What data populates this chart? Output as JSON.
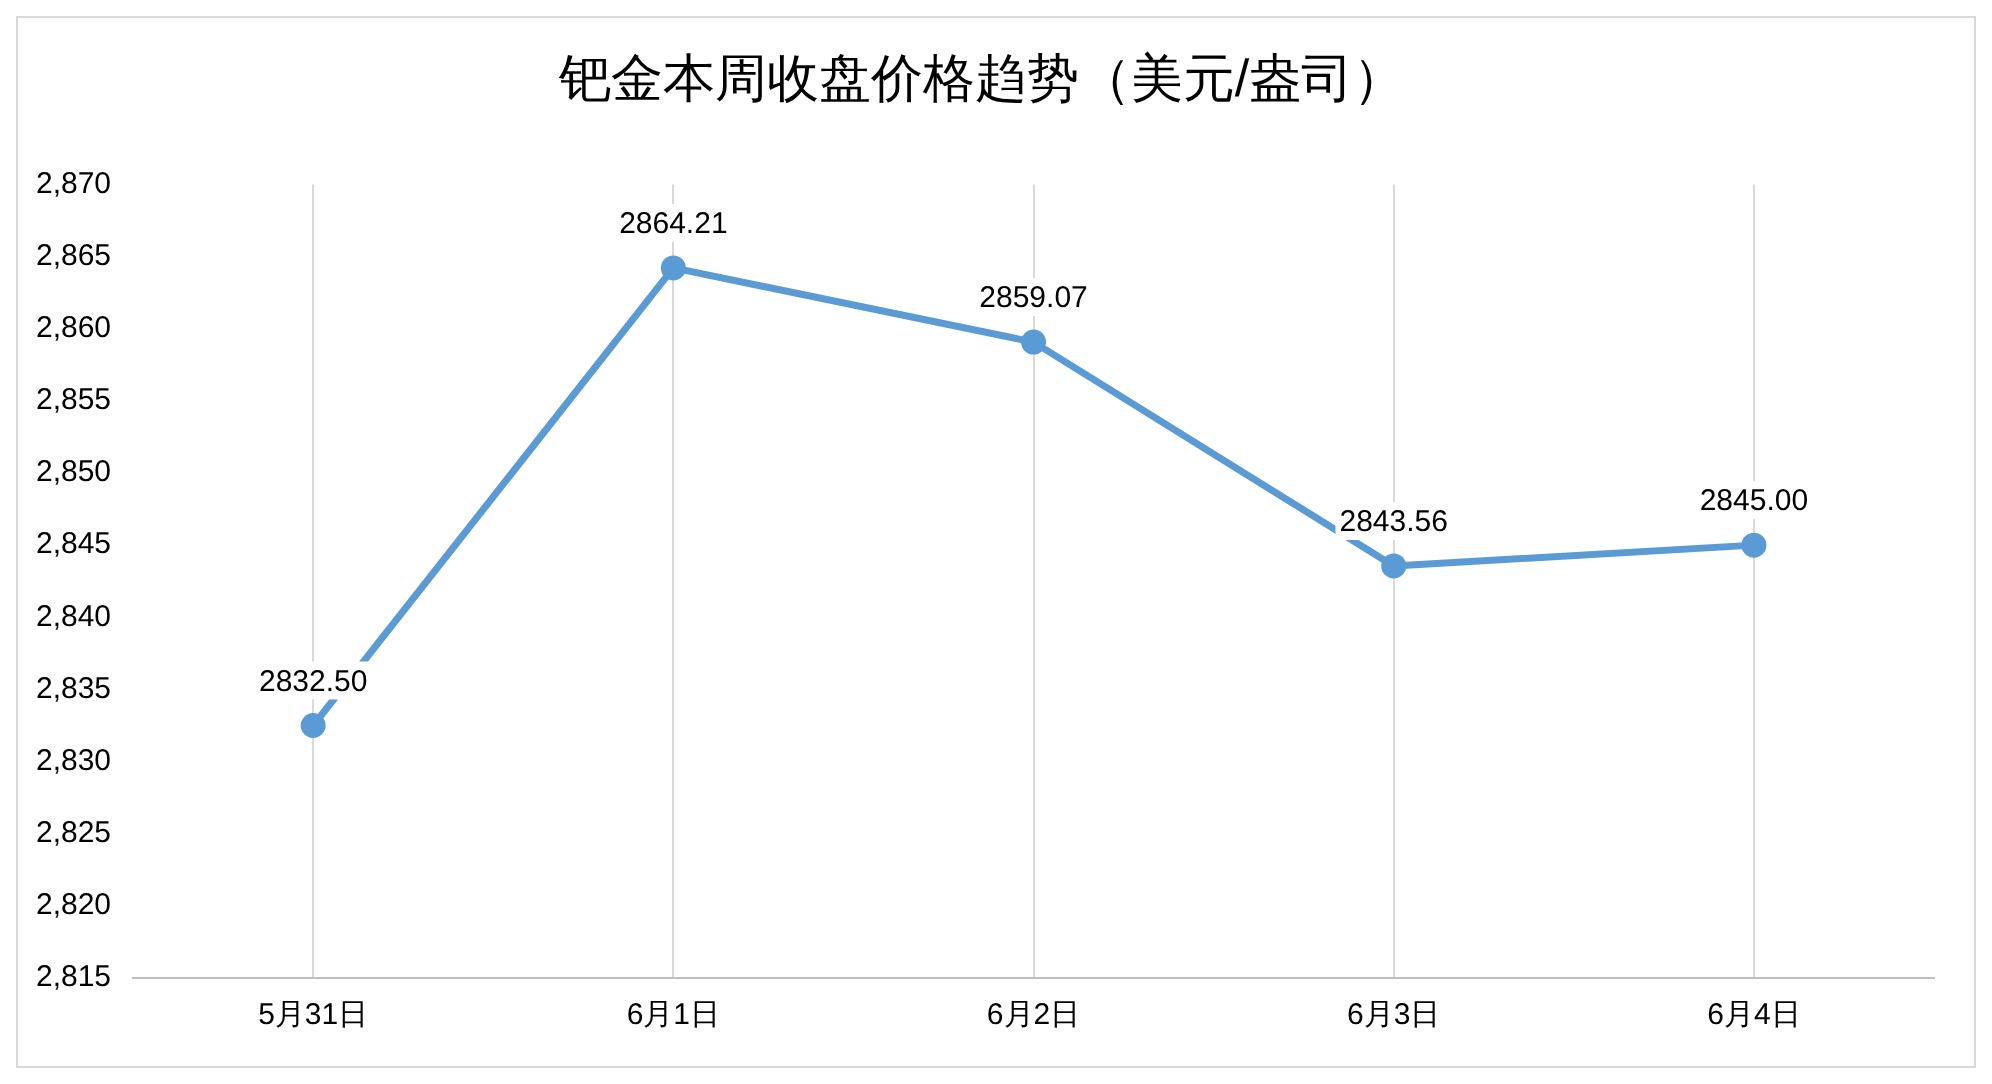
{
  "chart_data": {
    "type": "line",
    "title": "钯金本周收盘价格趋势（美元/盎司）",
    "categories": [
      "5月31日",
      "6月1日",
      "6月2日",
      "6月3日",
      "6月4日"
    ],
    "series": [
      {
        "color": "#5b9bd5",
        "values": [
          2832.5,
          2864.21,
          2859.07,
          2843.56,
          2845.0
        ]
      }
    ],
    "value_labels": [
      "2832.50",
      "2864.21",
      "2859.07",
      "2843.56",
      "2845.00"
    ],
    "ylim": [
      2815,
      2870
    ],
    "yticks": [
      {
        "value": 2815,
        "label": "2,815"
      },
      {
        "value": 2820,
        "label": "2,820"
      },
      {
        "value": 2825,
        "label": "2,825"
      },
      {
        "value": 2830,
        "label": "2,830"
      },
      {
        "value": 2835,
        "label": "2,835"
      },
      {
        "value": 2840,
        "label": "2,840"
      },
      {
        "value": 2845,
        "label": "2,845"
      },
      {
        "value": 2850,
        "label": "2,850"
      },
      {
        "value": 2855,
        "label": "2,855"
      },
      {
        "value": 2860,
        "label": "2,860"
      },
      {
        "value": 2865,
        "label": "2,865"
      },
      {
        "value": 2870,
        "label": "2,870"
      }
    ],
    "grid": "x",
    "legend": false,
    "marker": "circle",
    "line_style": "solid"
  }
}
